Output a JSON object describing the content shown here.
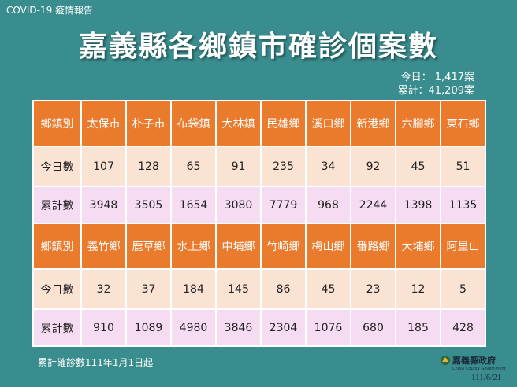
{
  "header": {
    "label": "COVID-19 疫情報告",
    "title": "嘉義縣各鄉鎮市確診個案數"
  },
  "summary": [
    "今日： 1,417案",
    "累計：41,209案"
  ],
  "table": {
    "blocks": [
      {
        "header": [
          "鄉鎮別",
          "太保市",
          "朴子市",
          "布袋鎮",
          "大林鎮",
          "民雄鄉",
          "溪口鄉",
          "新港鄉",
          "六腳鄉",
          "東石鄉"
        ],
        "rows": [
          [
            "今日數",
            107,
            128,
            65,
            91,
            235,
            34,
            92,
            45,
            51
          ],
          [
            "累計數",
            3948,
            3505,
            1654,
            3080,
            7779,
            968,
            2244,
            1398,
            1135
          ]
        ]
      },
      {
        "header": [
          "鄉鎮別",
          "義竹鄉",
          "鹿草鄉",
          "水上鄉",
          "中埔鄉",
          "竹崎鄉",
          "梅山鄉",
          "番路鄉",
          "大埔鄉",
          "阿里山"
        ],
        "rows": [
          [
            "今日數",
            32,
            37,
            184,
            145,
            86,
            45,
            23,
            12,
            5
          ],
          [
            "累計數",
            910,
            1089,
            4980,
            3846,
            2304,
            1076,
            680,
            185,
            428
          ]
        ]
      }
    ]
  },
  "footnote": "累計確診數111年1月1日起",
  "logo": {
    "name": "嘉義縣政府",
    "english": "Chiayi County Government"
  },
  "date": "111/6/21"
}
